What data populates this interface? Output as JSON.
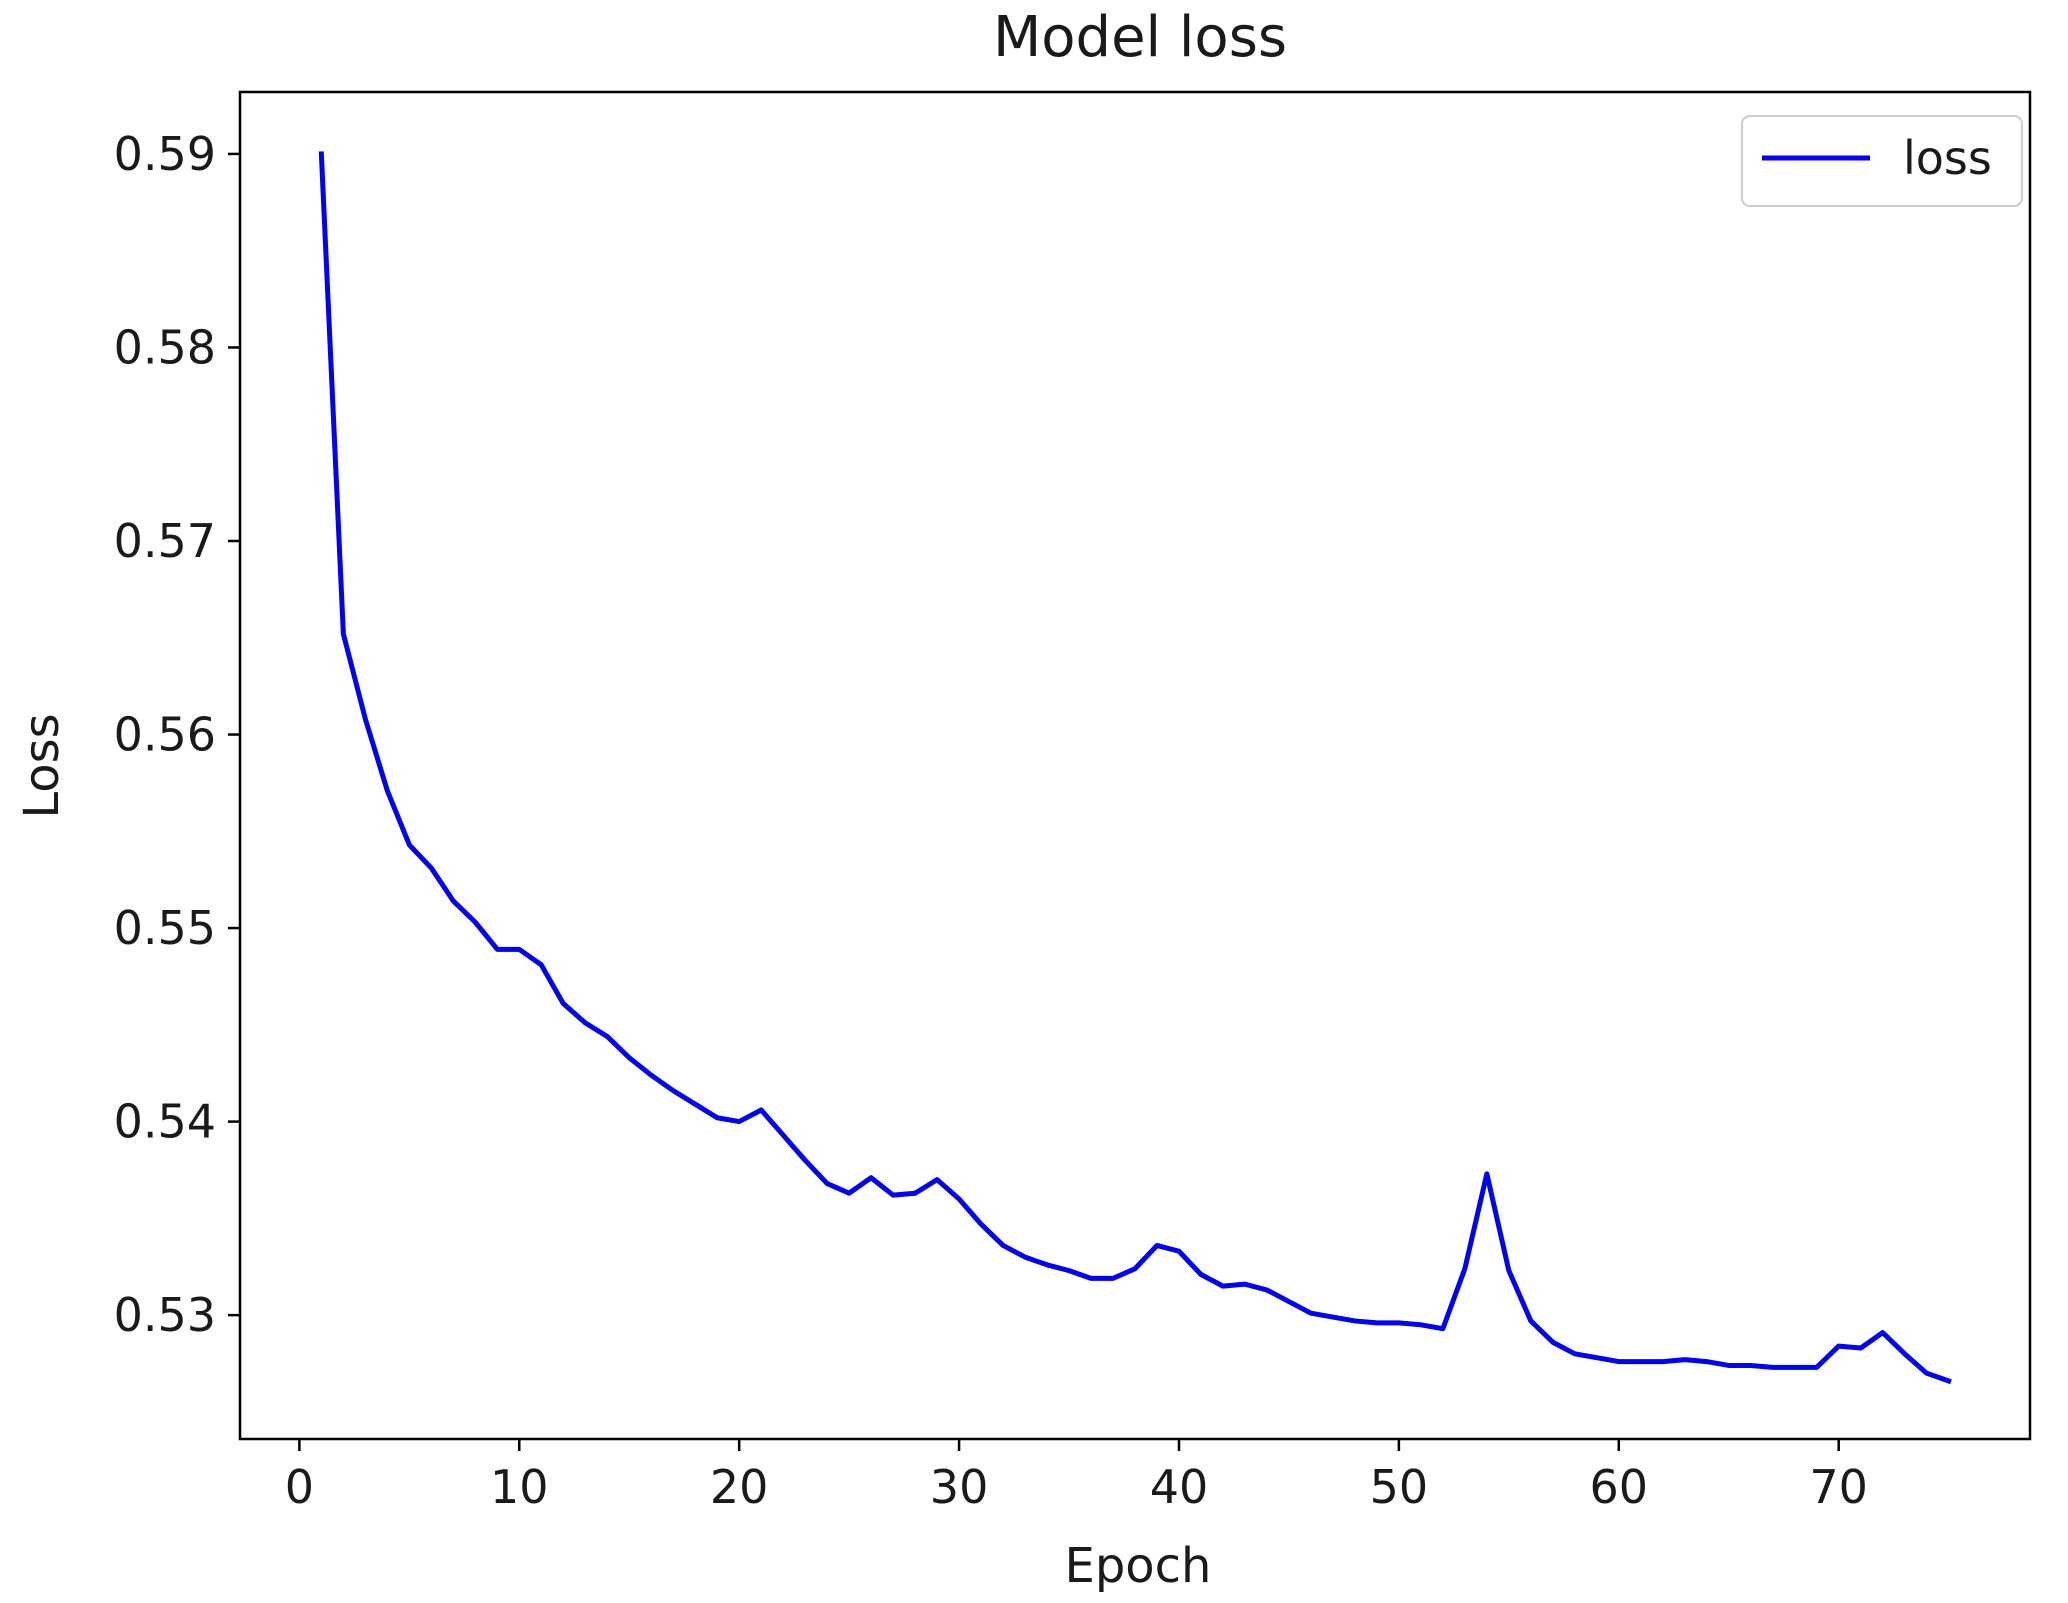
{
  "chart_data": {
    "type": "line",
    "title": "Model loss",
    "xlabel": "Epoch",
    "ylabel": "Loss",
    "xlim": [
      -2.7,
      78.7
    ],
    "ylim": [
      0.5236,
      0.5932
    ],
    "xticks": [
      0,
      10,
      20,
      30,
      40,
      50,
      60,
      70
    ],
    "yticks": [
      0.53,
      0.54,
      0.55,
      0.56,
      0.57,
      0.58,
      0.59
    ],
    "ytick_labels": [
      "0.53",
      "0.54",
      "0.55",
      "0.56",
      "0.57",
      "0.58",
      "0.59"
    ],
    "grid": false,
    "legend_position": "top-right",
    "series": [
      {
        "name": "loss",
        "color": "#0000ff",
        "x": [
          1,
          2,
          3,
          4,
          5,
          6,
          7,
          8,
          9,
          10,
          11,
          12,
          13,
          14,
          15,
          16,
          17,
          18,
          19,
          20,
          21,
          22,
          23,
          24,
          25,
          26,
          27,
          28,
          29,
          30,
          31,
          32,
          33,
          34,
          35,
          36,
          37,
          38,
          39,
          40,
          41,
          42,
          43,
          44,
          45,
          46,
          47,
          48,
          49,
          50,
          51,
          52,
          53,
          54,
          55,
          56,
          57,
          58,
          59,
          60,
          61,
          62,
          63,
          64,
          65,
          66,
          67,
          68,
          69,
          70,
          71,
          72,
          73,
          74,
          75
        ],
        "y": [
          0.59,
          0.5652,
          0.5608,
          0.5571,
          0.5543,
          0.5531,
          0.5514,
          0.5503,
          0.5489,
          0.5489,
          0.5481,
          0.5461,
          0.5451,
          0.5444,
          0.5433,
          0.5424,
          0.5416,
          0.5409,
          0.5402,
          0.54,
          0.5406,
          0.5393,
          0.538,
          0.5368,
          0.5363,
          0.5371,
          0.5362,
          0.5363,
          0.537,
          0.536,
          0.5347,
          0.5336,
          0.533,
          0.5326,
          0.5323,
          0.5319,
          0.5319,
          0.5324,
          0.5336,
          0.5333,
          0.5321,
          0.5315,
          0.5316,
          0.5313,
          0.5307,
          0.5301,
          0.5299,
          0.5297,
          0.5296,
          0.5296,
          0.5295,
          0.5293,
          0.5324,
          0.5373,
          0.5323,
          0.5297,
          0.5286,
          0.528,
          0.5278,
          0.5276,
          0.5276,
          0.5276,
          0.5277,
          0.5276,
          0.5274,
          0.5274,
          0.5273,
          0.5273,
          0.5273,
          0.5284,
          0.5283,
          0.5291,
          0.528,
          0.527,
          0.5266
        ]
      }
    ]
  }
}
